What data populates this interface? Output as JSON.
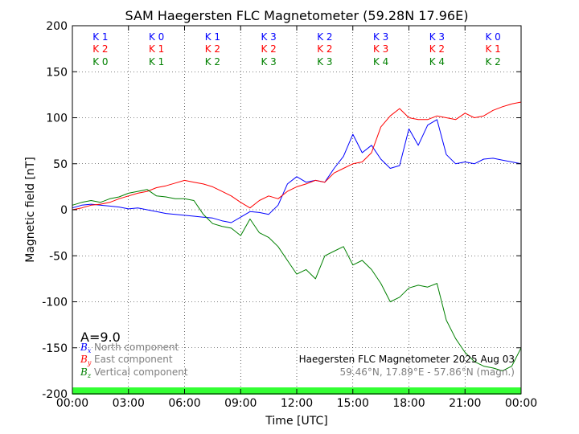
{
  "chart_data": {
    "type": "line",
    "title": "SAM Haegersten FLC Magnetometer (59.28N 17.96E)",
    "xlabel": "Time [UTC]",
    "ylabel": "Magnetic field [nT]",
    "xlim": [
      0,
      24
    ],
    "ylim": [
      -200,
      200
    ],
    "x_tick_labels": [
      "00:00",
      "03:00",
      "06:00",
      "09:00",
      "12:00",
      "15:00",
      "18:00",
      "21:00",
      "00:00"
    ],
    "y_ticks": [
      -200,
      -150,
      -100,
      -50,
      0,
      50,
      100,
      150,
      200
    ],
    "k_indices": {
      "north": [
        "K 1",
        "K 0",
        "K 1",
        "K 3",
        "K 2",
        "K 3",
        "K 3",
        "K 0"
      ],
      "east": [
        "K 2",
        "K 1",
        "K 2",
        "K 2",
        "K 2",
        "K 3",
        "K 2",
        "K 1"
      ],
      "vertical": [
        "K 0",
        "K 1",
        "K 2",
        "K 3",
        "K 3",
        "K 4",
        "K 4",
        "K 2"
      ]
    },
    "a_index": "A=9.0",
    "info_line1": "Haegersten FLC Magnetometer 2025 Aug 03",
    "info_line2": "59.46°N, 17.89°E - 57.86°N (magn.)",
    "colors": {
      "north": "#0000ff",
      "east": "#ff0000",
      "vertical": "#008000",
      "quality_bar": "#33ff33"
    },
    "series": [
      {
        "name": "North component",
        "symbol": "B",
        "subscript": "x",
        "x": [
          0,
          0.5,
          1,
          1.5,
          2,
          2.5,
          3,
          3.5,
          4,
          4.5,
          5,
          5.5,
          6,
          6.5,
          7,
          7.5,
          8,
          8.5,
          9,
          9.5,
          10,
          10.5,
          11,
          11.5,
          12,
          12.5,
          13,
          13.5,
          14,
          14.5,
          15,
          15.5,
          16,
          16.5,
          17,
          17.5,
          18,
          18.5,
          19,
          19.5,
          20,
          20.5,
          21,
          21.5,
          22,
          22.5,
          23,
          23.5,
          24
        ],
        "values": [
          2,
          5,
          6,
          5,
          4,
          3,
          1,
          2,
          0,
          -2,
          -4,
          -5,
          -6,
          -7,
          -8,
          -9,
          -12,
          -14,
          -8,
          -2,
          -3,
          -5,
          5,
          28,
          36,
          30,
          32,
          30,
          45,
          58,
          82,
          62,
          70,
          55,
          45,
          48,
          88,
          70,
          92,
          98,
          60,
          50,
          52,
          50,
          55,
          56,
          54,
          52,
          50
        ]
      },
      {
        "name": "East component",
        "symbol": "B",
        "subscript": "y",
        "x": [
          0,
          0.5,
          1,
          1.5,
          2,
          2.5,
          3,
          3.5,
          4,
          4.5,
          5,
          5.5,
          6,
          6.5,
          7,
          7.5,
          8,
          8.5,
          9,
          9.5,
          10,
          10.5,
          11,
          11.5,
          12,
          12.5,
          13,
          13.5,
          14,
          14.5,
          15,
          15.5,
          16,
          16.5,
          17,
          17.5,
          18,
          18.5,
          19,
          19.5,
          20,
          20.5,
          21,
          21.5,
          22,
          22.5,
          23,
          23.5,
          24
        ],
        "values": [
          0,
          2,
          5,
          6,
          8,
          12,
          15,
          18,
          20,
          24,
          26,
          29,
          32,
          30,
          28,
          25,
          20,
          15,
          8,
          2,
          10,
          15,
          12,
          20,
          25,
          28,
          32,
          30,
          40,
          45,
          50,
          52,
          62,
          90,
          102,
          110,
          100,
          98,
          98,
          102,
          100,
          98,
          105,
          100,
          102,
          108,
          112,
          115,
          117
        ]
      },
      {
        "name": "Vertical component",
        "symbol": "B",
        "subscript": "z",
        "x": [
          0,
          0.5,
          1,
          1.5,
          2,
          2.5,
          3,
          3.5,
          4,
          4.5,
          5,
          5.5,
          6,
          6.5,
          7,
          7.5,
          8,
          8.5,
          9,
          9.5,
          10,
          10.5,
          11,
          11.5,
          12,
          12.5,
          13,
          13.5,
          14,
          14.5,
          15,
          15.5,
          16,
          16.5,
          17,
          17.5,
          18,
          18.5,
          19,
          19.5,
          20,
          20.5,
          21,
          21.5,
          22,
          22.5,
          23,
          23.5,
          24
        ],
        "values": [
          5,
          8,
          10,
          8,
          12,
          14,
          18,
          20,
          22,
          15,
          14,
          12,
          12,
          10,
          -5,
          -15,
          -18,
          -20,
          -28,
          -10,
          -25,
          -30,
          -40,
          -55,
          -70,
          -65,
          -75,
          -50,
          -45,
          -40,
          -60,
          -55,
          -65,
          -80,
          -100,
          -95,
          -85,
          -82,
          -84,
          -80,
          -120,
          -140,
          -155,
          -165,
          -170,
          -172,
          -175,
          -170,
          -150
        ]
      }
    ]
  }
}
